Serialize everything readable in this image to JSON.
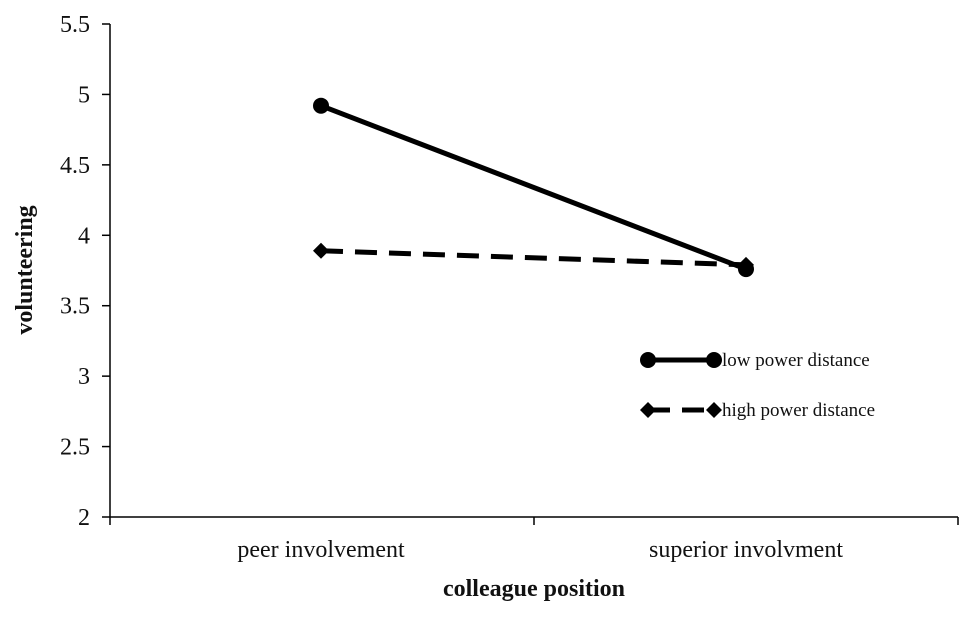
{
  "chart_data": {
    "type": "line",
    "title": "",
    "xlabel": "colleague position",
    "ylabel": "volunteering",
    "categories": [
      "peer involvement",
      "superior involvment"
    ],
    "ylim": [
      2,
      5.5
    ],
    "yticks": [
      2,
      2.5,
      3,
      3.5,
      4,
      4.5,
      5,
      5.5
    ],
    "ytick_labels": [
      "2",
      "2.5",
      "3",
      "3.5",
      "4",
      "4.5",
      "5",
      "5.5"
    ],
    "grid": false,
    "legend_position": "right",
    "series": [
      {
        "name": "low power distance",
        "values": [
          4.92,
          3.76
        ],
        "line_style": "solid",
        "marker": "circle",
        "color": "#000000"
      },
      {
        "name": "high power distance",
        "values": [
          3.89,
          3.79
        ],
        "line_style": "dashed",
        "marker": "diamond",
        "color": "#000000"
      }
    ]
  }
}
